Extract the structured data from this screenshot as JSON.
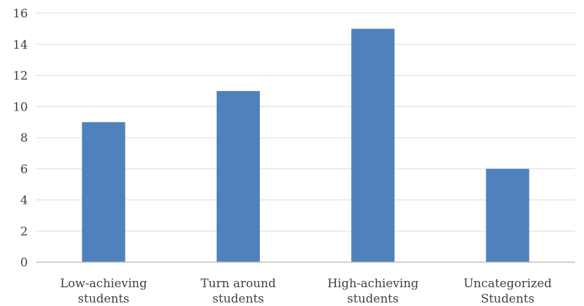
{
  "chart_data": {
    "type": "bar",
    "categories": [
      [
        "Low-achieving",
        "students"
      ],
      [
        "Turn around",
        "students"
      ],
      [
        "High-achieving",
        "students"
      ],
      [
        "Uncategorized",
        "Students"
      ]
    ],
    "values": [
      9,
      11,
      15,
      6
    ],
    "ylim": [
      0,
      16
    ],
    "y_ticks": [
      "0",
      "2",
      "4",
      "6",
      "8",
      "10",
      "12",
      "14",
      "16"
    ],
    "grid": true,
    "colors": {
      "bar": "#4f81bd",
      "grid": "#d9d9d9",
      "axis": "#bfbfbf"
    }
  }
}
